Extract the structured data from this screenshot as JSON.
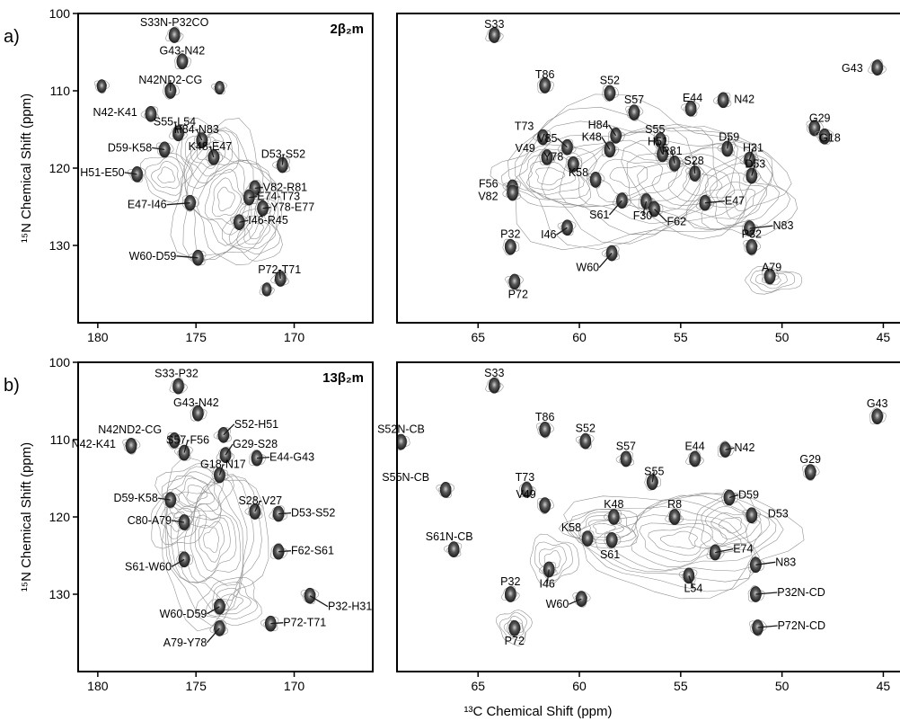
{
  "figure": {
    "ylabel": "¹⁵N Chemical Shift (ppm)",
    "xlabel": "¹³C Chemical Shift (ppm)"
  },
  "chart_data": [
    {
      "type": "scatter",
      "row": "a)",
      "panel": "carbonyl",
      "title": "2β₂m",
      "xlim": [
        181,
        166
      ],
      "ylim": [
        100,
        140
      ],
      "xticks": [
        180,
        175,
        170
      ],
      "yticks": [
        100,
        110,
        120,
        130
      ],
      "ylabel": "¹⁵N Chemical Shift (ppm)",
      "points": [
        {
          "label": "S33N-P32CO",
          "x": 176.1,
          "y": 102.8
        },
        {
          "label": "G43-N42",
          "x": 175.7,
          "y": 106.2
        },
        {
          "label": "N42ND2-CG",
          "x": 176.3,
          "y": 110.0
        },
        {
          "label": "",
          "x": 179.8,
          "y": 109.4
        },
        {
          "label": "",
          "x": 173.8,
          "y": 109.6
        },
        {
          "label": "N42-K41",
          "x": 177.3,
          "y": 113.0
        },
        {
          "label": "S55-L54",
          "x": 175.9,
          "y": 115.5
        },
        {
          "label": "H84-N83",
          "x": 174.7,
          "y": 116.4
        },
        {
          "label": "K48-E47",
          "x": 174.1,
          "y": 118.6
        },
        {
          "label": "D59-K58",
          "x": 176.6,
          "y": 117.6
        },
        {
          "label": "H51-E50",
          "x": 178.0,
          "y": 120.8
        },
        {
          "label": "D53-S52",
          "x": 170.6,
          "y": 119.6
        },
        {
          "label": "V82-R81",
          "x": 172.0,
          "y": 122.6
        },
        {
          "label": "E74-T73",
          "x": 172.3,
          "y": 123.8
        },
        {
          "label": "Y78-E77",
          "x": 171.6,
          "y": 125.2
        },
        {
          "label": "E47-I46",
          "x": 175.3,
          "y": 124.5
        },
        {
          "label": "I46-R45",
          "x": 172.8,
          "y": 127.0
        },
        {
          "label": "W60-D59",
          "x": 174.9,
          "y": 131.6
        },
        {
          "label": "P72-T71",
          "x": 170.7,
          "y": 134.3
        },
        {
          "label": "",
          "x": 171.4,
          "y": 135.7
        }
      ]
    },
    {
      "type": "scatter",
      "row": "a)",
      "panel": "aliphatic",
      "xlim": [
        69,
        44
      ],
      "ylim": [
        100,
        140
      ],
      "xticks": [
        65,
        60,
        55,
        50,
        45
      ],
      "yticks": [
        100,
        110,
        120,
        130
      ],
      "points": [
        {
          "label": "S33",
          "x": 64.2,
          "y": 102.8
        },
        {
          "label": "T86",
          "x": 61.7,
          "y": 109.3
        },
        {
          "label": "S52",
          "x": 58.5,
          "y": 110.3
        },
        {
          "label": "S57",
          "x": 57.3,
          "y": 112.8
        },
        {
          "label": "E44",
          "x": 54.5,
          "y": 112.3
        },
        {
          "label": "N42",
          "x": 52.9,
          "y": 111.2
        },
        {
          "label": "G43",
          "x": 45.3,
          "y": 107.0
        },
        {
          "label": "H84",
          "x": 58.2,
          "y": 115.8
        },
        {
          "label": "S55",
          "x": 56.0,
          "y": 116.4
        },
        {
          "label": "G29",
          "x": 48.4,
          "y": 114.8
        },
        {
          "label": "G18",
          "x": 47.9,
          "y": 115.9
        },
        {
          "label": "T73",
          "x": 61.8,
          "y": 116.0
        },
        {
          "label": "V85",
          "x": 60.6,
          "y": 117.3
        },
        {
          "label": "K48",
          "x": 58.5,
          "y": 117.6
        },
        {
          "label": "H51",
          "x": 55.9,
          "y": 118.2
        },
        {
          "label": "R81",
          "x": 55.3,
          "y": 119.4
        },
        {
          "label": "S28",
          "x": 54.3,
          "y": 120.7
        },
        {
          "label": "D59",
          "x": 52.7,
          "y": 117.5
        },
        {
          "label": "H31",
          "x": 51.6,
          "y": 118.9
        },
        {
          "label": "D53",
          "x": 51.5,
          "y": 121.0
        },
        {
          "label": "V49",
          "x": 61.6,
          "y": 118.6
        },
        {
          "label": "Y78",
          "x": 60.3,
          "y": 119.5
        },
        {
          "label": "K58",
          "x": 59.2,
          "y": 121.5
        },
        {
          "label": "F56",
          "x": 63.3,
          "y": 122.5
        },
        {
          "label": "V82",
          "x": 63.3,
          "y": 123.2
        },
        {
          "label": "E47",
          "x": 53.8,
          "y": 124.5
        },
        {
          "label": "N83",
          "x": 51.6,
          "y": 127.8
        },
        {
          "label": "P32",
          "x": 63.4,
          "y": 130.2
        },
        {
          "label": "P32",
          "x": 51.5,
          "y": 130.2
        },
        {
          "label": "I46",
          "x": 60.6,
          "y": 127.7
        },
        {
          "label": "W60",
          "x": 58.4,
          "y": 131.0
        },
        {
          "label": "S61",
          "x": 57.9,
          "y": 124.2
        },
        {
          "label": "F30",
          "x": 56.7,
          "y": 124.3
        },
        {
          "label": "F62",
          "x": 56.3,
          "y": 125.3
        },
        {
          "label": "A79",
          "x": 50.6,
          "y": 134.0
        },
        {
          "label": "P72",
          "x": 63.2,
          "y": 134.7
        }
      ]
    },
    {
      "type": "scatter",
      "row": "b)",
      "panel": "carbonyl",
      "title": "13β₂m",
      "xlim": [
        181,
        166
      ],
      "ylim": [
        100,
        140
      ],
      "xticks": [
        180,
        175,
        170
      ],
      "yticks": [
        100,
        110,
        120,
        130
      ],
      "ylabel": "¹⁵N Chemical Shift (ppm)",
      "points": [
        {
          "label": "S33-P32",
          "x": 175.9,
          "y": 103.1
        },
        {
          "label": "G43-N42",
          "x": 174.9,
          "y": 106.6
        },
        {
          "label": "N42ND2-CG",
          "x": 176.1,
          "y": 110.1
        },
        {
          "label": "N42-K41",
          "x": 178.3,
          "y": 110.8
        },
        {
          "label": "S57-F56",
          "x": 175.6,
          "y": 111.7
        },
        {
          "label": "S52-H51",
          "x": 173.6,
          "y": 109.4
        },
        {
          "label": "G29-S28",
          "x": 173.5,
          "y": 112.0
        },
        {
          "label": "E44-G43",
          "x": 171.9,
          "y": 112.4
        },
        {
          "label": "G18-N17",
          "x": 173.8,
          "y": 114.6
        },
        {
          "label": "D59-K58",
          "x": 176.3,
          "y": 117.8
        },
        {
          "label": "C80-A79",
          "x": 175.6,
          "y": 120.7
        },
        {
          "label": "S28-V27",
          "x": 172.0,
          "y": 119.3
        },
        {
          "label": "D53-S52",
          "x": 170.8,
          "y": 119.6
        },
        {
          "label": "F62-S61",
          "x": 170.8,
          "y": 124.5
        },
        {
          "label": "S61-W60",
          "x": 175.6,
          "y": 125.5
        },
        {
          "label": "W60-D59",
          "x": 173.8,
          "y": 131.6
        },
        {
          "label": "P32-H31",
          "x": 169.2,
          "y": 130.2
        },
        {
          "label": "P72-T71",
          "x": 171.2,
          "y": 133.8
        },
        {
          "label": "A79-Y78",
          "x": 173.8,
          "y": 134.4
        }
      ]
    },
    {
      "type": "scatter",
      "row": "b)",
      "panel": "aliphatic",
      "xlim": [
        69,
        44
      ],
      "ylim": [
        100,
        140
      ],
      "xticks": [
        65,
        60,
        55,
        50,
        45
      ],
      "yticks": [
        100,
        110,
        120,
        130
      ],
      "points": [
        {
          "label": "S33",
          "x": 64.2,
          "y": 103.0
        },
        {
          "label": "G43",
          "x": 45.3,
          "y": 107.0
        },
        {
          "label": "S52N-CB",
          "x": 68.8,
          "y": 110.3
        },
        {
          "label": "T86",
          "x": 61.7,
          "y": 108.7
        },
        {
          "label": "S52",
          "x": 59.7,
          "y": 110.2
        },
        {
          "label": "S57",
          "x": 57.7,
          "y": 112.5
        },
        {
          "label": "E44",
          "x": 54.3,
          "y": 112.5
        },
        {
          "label": "N42",
          "x": 52.8,
          "y": 111.3
        },
        {
          "label": "S55",
          "x": 56.4,
          "y": 115.5
        },
        {
          "label": "G29",
          "x": 48.6,
          "y": 114.2
        },
        {
          "label": "S55N-CB",
          "x": 66.6,
          "y": 116.5
        },
        {
          "label": "K48",
          "x": 58.3,
          "y": 120.0
        },
        {
          "label": "R8",
          "x": 55.3,
          "y": 120.0
        },
        {
          "label": "T73",
          "x": 62.6,
          "y": 116.5
        },
        {
          "label": "D59",
          "x": 52.6,
          "y": 117.5
        },
        {
          "label": "V49",
          "x": 61.7,
          "y": 118.5
        },
        {
          "label": "D53",
          "x": 51.5,
          "y": 119.8
        },
        {
          "label": "S61N-CB",
          "x": 66.2,
          "y": 124.2
        },
        {
          "label": "K58",
          "x": 59.6,
          "y": 122.8
        },
        {
          "label": "E74",
          "x": 53.3,
          "y": 124.6
        },
        {
          "label": "N83",
          "x": 51.3,
          "y": 126.2
        },
        {
          "label": "S61",
          "x": 58.4,
          "y": 123.0
        },
        {
          "label": "W60",
          "x": 59.9,
          "y": 130.6
        },
        {
          "label": "L54",
          "x": 54.6,
          "y": 127.6
        },
        {
          "label": "I46",
          "x": 61.5,
          "y": 126.8
        },
        {
          "label": "P32",
          "x": 63.4,
          "y": 130.0
        },
        {
          "label": "P32N-CD",
          "x": 51.3,
          "y": 130.0
        },
        {
          "label": "P72",
          "x": 63.2,
          "y": 134.4
        },
        {
          "label": "P72N-CD",
          "x": 51.2,
          "y": 134.3
        }
      ]
    }
  ]
}
